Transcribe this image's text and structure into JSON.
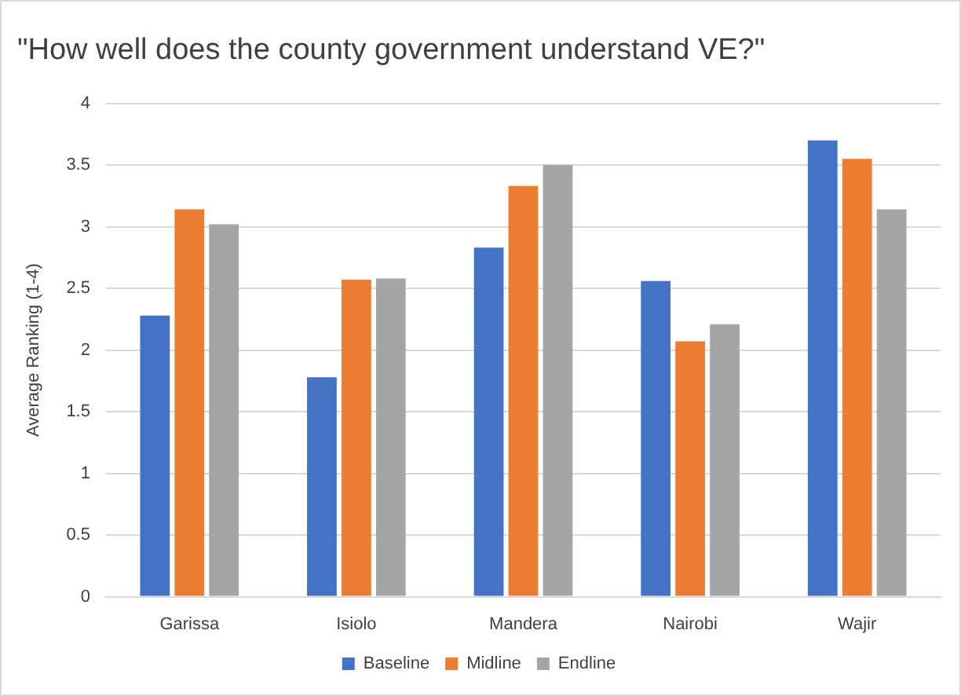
{
  "chart_data": {
    "type": "bar",
    "title": "\"How well does the county government understand VE?\"",
    "ylabel": "Average Ranking (1-4)",
    "categories": [
      "Garissa",
      "Isiolo",
      "Mandera",
      "Nairobi",
      "Wajir"
    ],
    "series": [
      {
        "name": "Baseline",
        "color": "#4472c4",
        "values": [
          2.28,
          1.78,
          2.83,
          2.56,
          3.7
        ]
      },
      {
        "name": "Midline",
        "color": "#ed7d31",
        "values": [
          3.14,
          2.57,
          3.33,
          2.07,
          3.55
        ]
      },
      {
        "name": "Endline",
        "color": "#a5a5a5",
        "values": [
          3.02,
          2.58,
          3.5,
          2.21,
          3.14
        ]
      }
    ],
    "ylim": [
      0,
      4
    ],
    "yticks": [
      0,
      0.5,
      1,
      1.5,
      2,
      2.5,
      3,
      3.5,
      4
    ],
    "grid": "y",
    "legend": "bottom"
  }
}
